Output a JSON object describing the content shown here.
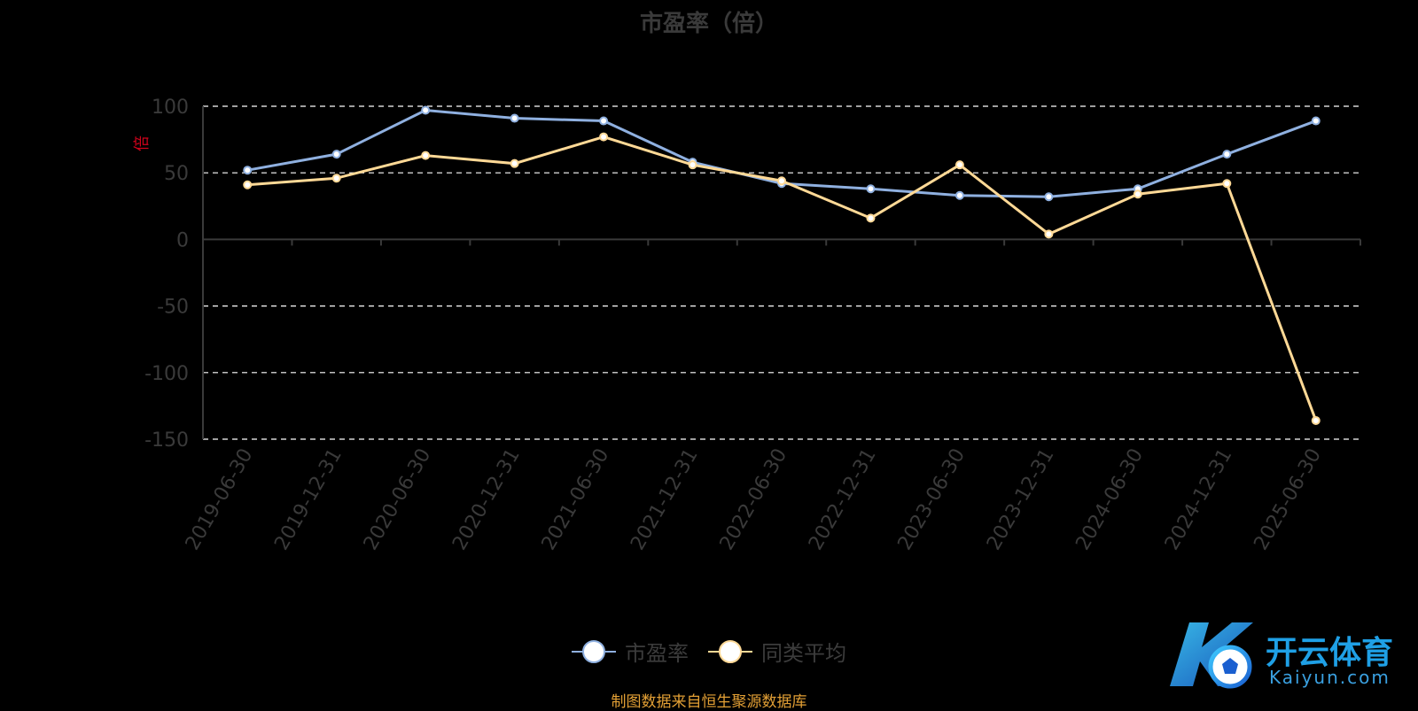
{
  "chart_data": {
    "type": "line",
    "title": "市盈率（倍）",
    "ylabel": "倍",
    "ylim": [
      -150,
      100
    ],
    "yticks": [
      100,
      50,
      0,
      -50,
      -100,
      -150
    ],
    "grid": true,
    "legend_position": "bottom",
    "categories": [
      "2019-06-30",
      "2019-12-31",
      "2020-06-30",
      "2020-12-31",
      "2021-06-30",
      "2021-12-31",
      "2022-06-30",
      "2022-12-31",
      "2023-06-30",
      "2023-12-31",
      "2024-06-30",
      "2024-12-31",
      "2025-06-30"
    ],
    "series": [
      {
        "name": "市盈率",
        "color": "#8fb0e0",
        "values": [
          52,
          64,
          97,
          91,
          89,
          58,
          42,
          38,
          33,
          32,
          38,
          64,
          89
        ]
      },
      {
        "name": "同类平均",
        "color": "#ffd996",
        "values": [
          41,
          46,
          63,
          57,
          77,
          56,
          44,
          16,
          56,
          4,
          34,
          42,
          -136
        ]
      }
    ]
  },
  "source_note": "制图数据来自恒生聚源数据库",
  "logo": {
    "cn": "开云体育",
    "en": "Kaiyun.com"
  }
}
